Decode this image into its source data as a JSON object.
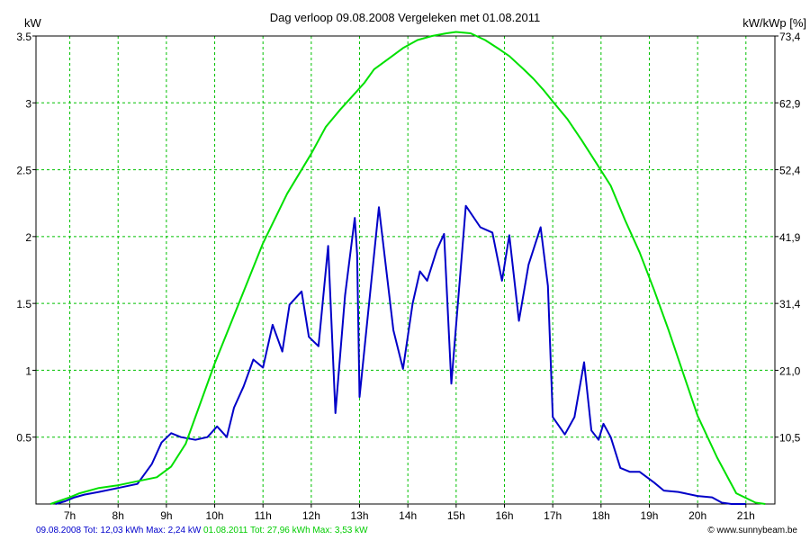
{
  "chart_data": {
    "type": "line",
    "title": "Dag  verloop 09.08.2008   Vergeleken met 01.08.2011",
    "ylabel_left": "kW",
    "ylabel_right": "kW/kWp [%]",
    "ylim": [
      0,
      3.5
    ],
    "xlim": [
      6.3,
      21.6
    ],
    "yticks_left": [
      {
        "value": 0.5,
        "label": "0.5"
      },
      {
        "value": 1.0,
        "label": "1"
      },
      {
        "value": 1.5,
        "label": "1.5"
      },
      {
        "value": 2.0,
        "label": "2"
      },
      {
        "value": 2.5,
        "label": "2.5"
      },
      {
        "value": 3.0,
        "label": "3"
      },
      {
        "value": 3.5,
        "label": "3.5"
      }
    ],
    "yticks_right": [
      {
        "value": 0.5,
        "label": "10,5"
      },
      {
        "value": 1.0,
        "label": "21,0"
      },
      {
        "value": 1.5,
        "label": "31,4"
      },
      {
        "value": 2.0,
        "label": "41,9"
      },
      {
        "value": 2.5,
        "label": "52,4"
      },
      {
        "value": 3.0,
        "label": "62,9"
      },
      {
        "value": 3.5,
        "label": "73,4"
      }
    ],
    "xticks": [
      {
        "value": 7,
        "label": "7h"
      },
      {
        "value": 8,
        "label": "8h"
      },
      {
        "value": 9,
        "label": "9h"
      },
      {
        "value": 10,
        "label": "10h"
      },
      {
        "value": 11,
        "label": "11h"
      },
      {
        "value": 12,
        "label": "12h"
      },
      {
        "value": 13,
        "label": "13h"
      },
      {
        "value": 14,
        "label": "14h"
      },
      {
        "value": 15,
        "label": "15h"
      },
      {
        "value": 16,
        "label": "16h"
      },
      {
        "value": 17,
        "label": "17h"
      },
      {
        "value": 18,
        "label": "18h"
      },
      {
        "value": 19,
        "label": "19h"
      },
      {
        "value": 20,
        "label": "20h"
      },
      {
        "value": 21,
        "label": "21h"
      }
    ],
    "grid": true,
    "colors": {
      "grid": "#00c000",
      "series1": "#0000c8",
      "series2": "#00e000",
      "axis": "#000000"
    },
    "series": [
      {
        "color": "#0000c8",
        "x": [
          6.7,
          6.9,
          7.1,
          7.3,
          7.6,
          8.0,
          8.4,
          8.7,
          8.9,
          9.1,
          9.3,
          9.6,
          9.85,
          10.05,
          10.25,
          10.4,
          10.6,
          10.8,
          11.0,
          11.2,
          11.4,
          11.55,
          11.8,
          11.95,
          12.15,
          12.35,
          12.5,
          12.7,
          12.9,
          12.95,
          13.0,
          13.4,
          13.7,
          13.9,
          14.1,
          14.25,
          14.4,
          14.6,
          14.75,
          14.9,
          15.2,
          15.5,
          15.75,
          15.95,
          16.1,
          16.3,
          16.5,
          16.75,
          16.9,
          17.0,
          17.25,
          17.45,
          17.65,
          17.8,
          17.95,
          18.05,
          18.2,
          18.4,
          18.6,
          18.8,
          19.1,
          19.3,
          19.6,
          20.0,
          20.3,
          20.5,
          20.7,
          21.0
        ],
        "y": [
          0.0,
          0.02,
          0.05,
          0.07,
          0.09,
          0.12,
          0.15,
          0.3,
          0.46,
          0.53,
          0.5,
          0.48,
          0.5,
          0.58,
          0.5,
          0.72,
          0.88,
          1.08,
          1.02,
          1.34,
          1.14,
          1.49,
          1.59,
          1.25,
          1.18,
          1.93,
          0.68,
          1.56,
          2.14,
          1.87,
          0.8,
          2.22,
          1.3,
          1.01,
          1.5,
          1.74,
          1.67,
          1.9,
          2.02,
          0.9,
          2.23,
          2.07,
          2.03,
          1.67,
          2.01,
          1.37,
          1.79,
          2.07,
          1.63,
          0.65,
          0.52,
          0.65,
          1.06,
          0.55,
          0.48,
          0.6,
          0.5,
          0.27,
          0.24,
          0.24,
          0.16,
          0.1,
          0.09,
          0.06,
          0.05,
          0.01,
          0.0,
          0.0
        ]
      },
      {
        "color": "#00e000",
        "x": [
          6.6,
          7.0,
          7.2,
          7.6,
          8.0,
          8.4,
          8.8,
          9.1,
          9.4,
          9.7,
          10.0,
          10.5,
          11.0,
          11.5,
          12.0,
          12.3,
          12.6,
          12.9,
          13.1,
          13.3,
          13.6,
          13.9,
          14.2,
          14.5,
          14.8,
          15.0,
          15.3,
          15.6,
          15.9,
          16.1,
          16.4,
          16.6,
          16.8,
          17.0,
          17.3,
          17.6,
          17.9,
          18.2,
          18.5,
          18.8,
          19.1,
          19.4,
          19.7,
          20.0,
          20.4,
          20.8,
          21.2,
          21.4
        ],
        "y": [
          0.0,
          0.05,
          0.08,
          0.12,
          0.14,
          0.17,
          0.2,
          0.28,
          0.45,
          0.75,
          1.05,
          1.5,
          1.95,
          2.32,
          2.62,
          2.82,
          2.95,
          3.07,
          3.15,
          3.25,
          3.33,
          3.41,
          3.47,
          3.5,
          3.52,
          3.53,
          3.52,
          3.47,
          3.4,
          3.35,
          3.25,
          3.18,
          3.1,
          3.01,
          2.88,
          2.72,
          2.55,
          2.38,
          2.12,
          1.88,
          1.6,
          1.3,
          0.98,
          0.66,
          0.35,
          0.08,
          0.01,
          0.0
        ]
      }
    ]
  },
  "footer": {
    "s1_text": "09.08.2008 Tot: 12,03 kWh Max: 2,24 kW",
    "s2_text": "01.08.2011 Tot: 27,96 kWh Max: 3,53 kW",
    "copyright": "© www.sunnybeam.be"
  }
}
